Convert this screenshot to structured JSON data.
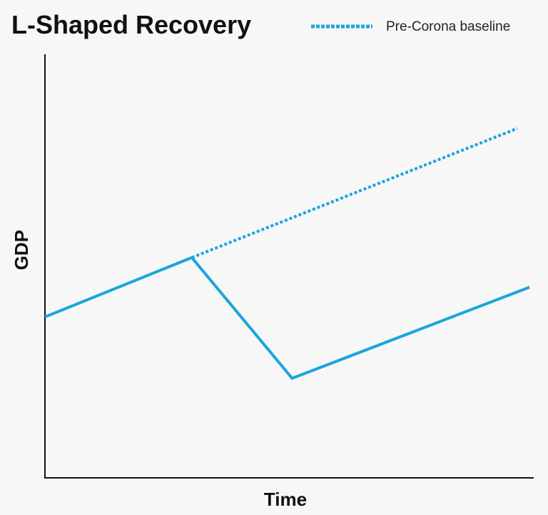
{
  "chart_data": {
    "type": "line",
    "title": "L-Shaped Recovery",
    "xlabel": "Time",
    "ylabel": "GDP",
    "legend_position": "top-right",
    "grid": false,
    "xlim": [
      0,
      100
    ],
    "ylim": [
      0,
      100
    ],
    "series": [
      {
        "name": "",
        "style": "solid",
        "color": "#1ba5dc",
        "x": [
          0,
          30,
          50.5,
          99
        ],
        "y": [
          38,
          52,
          23.5,
          45
        ]
      },
      {
        "name": "Pre-Corona baseline",
        "style": "dotted",
        "color": "#1ba5dc",
        "x": [
          30,
          96.5
        ],
        "y": [
          52,
          82.5
        ]
      }
    ]
  }
}
